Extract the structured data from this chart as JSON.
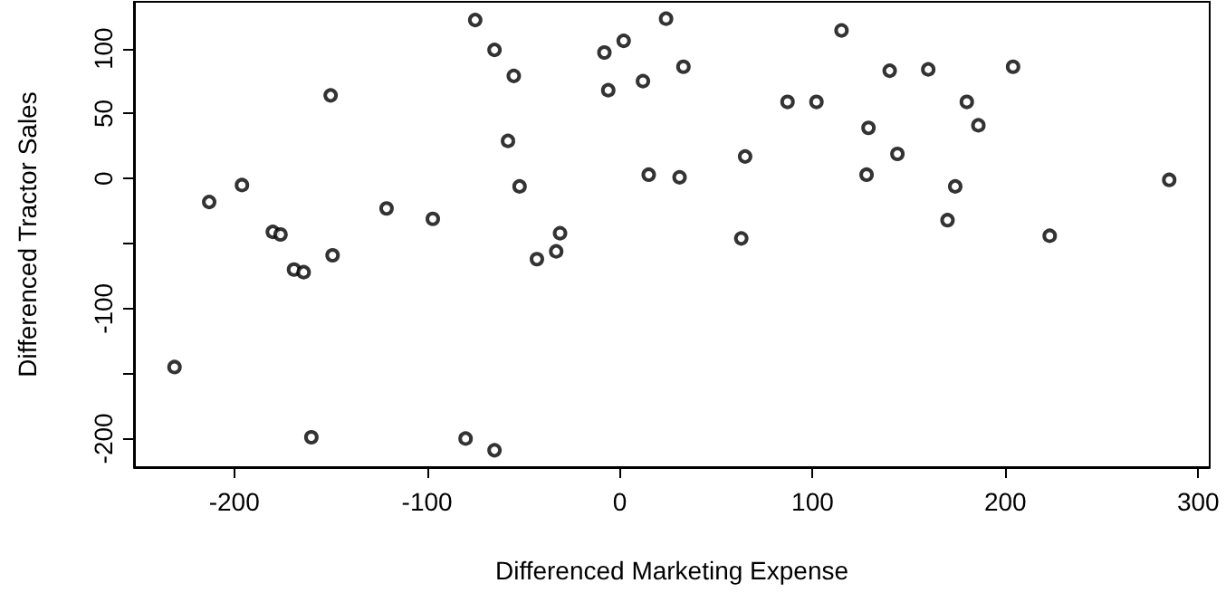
{
  "chart_data": {
    "type": "scatter",
    "xlabel": "Differenced Marketing Expense",
    "ylabel": "Differenced Tractor Sales",
    "x": [
      -231,
      -213,
      -196,
      -180,
      -176,
      -169,
      -164,
      -150,
      -149,
      -160,
      -121,
      -97,
      -75,
      -65,
      -80,
      -65,
      -55,
      -58,
      -52,
      -43,
      -33,
      -31,
      -8,
      -6,
      2,
      12,
      24,
      33,
      15,
      31,
      65,
      63,
      87,
      102,
      115,
      140,
      160,
      204,
      180,
      129,
      186,
      144,
      128,
      174,
      285,
      170,
      223
    ],
    "values": [
      -145,
      -18,
      -5,
      -41,
      -43,
      -70,
      -72,
      64,
      -59,
      -199,
      -23,
      -31,
      122,
      99,
      -200,
      -209,
      79,
      29,
      -6,
      -62,
      -56,
      -42,
      97,
      68,
      106,
      75,
      123,
      86,
      3,
      1,
      17,
      -46,
      59,
      59,
      114,
      83,
      84,
      86,
      59,
      39,
      41,
      19,
      3,
      -6,
      -1,
      -32,
      -44
    ],
    "color": "#000000",
    "marker": "circle",
    "grid": false,
    "xlim": [
      -252,
      306
    ],
    "xticks": [
      -200,
      -100,
      0,
      100,
      200,
      300
    ],
    "ylim": [
      -222,
      136
    ],
    "yticks": [
      {
        "value": -200,
        "label": "-200"
      },
      {
        "value": -150,
        "label": null
      },
      {
        "value": -100,
        "label": "-100"
      },
      {
        "value": -50,
        "label": null
      },
      0,
      50,
      100
    ]
  }
}
